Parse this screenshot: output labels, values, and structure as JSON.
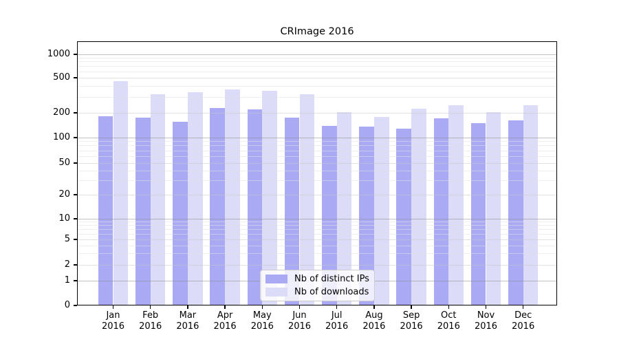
{
  "chart_data": {
    "type": "bar",
    "title": "CRImage 2016",
    "categories": [
      {
        "month": "Jan",
        "year": "2016"
      },
      {
        "month": "Feb",
        "year": "2016"
      },
      {
        "month": "Mar",
        "year": "2016"
      },
      {
        "month": "Apr",
        "year": "2016"
      },
      {
        "month": "May",
        "year": "2016"
      },
      {
        "month": "Jun",
        "year": "2016"
      },
      {
        "month": "Jul",
        "year": "2016"
      },
      {
        "month": "Aug",
        "year": "2016"
      },
      {
        "month": "Sep",
        "year": "2016"
      },
      {
        "month": "Oct",
        "year": "2016"
      },
      {
        "month": "Nov",
        "year": "2016"
      },
      {
        "month": "Dec",
        "year": "2016"
      }
    ],
    "series": [
      {
        "name": "Nb of distinct IPs",
        "color": "#a9a9f4",
        "values": [
          182,
          174,
          155,
          227,
          219,
          174,
          138,
          135,
          128,
          171,
          151,
          163
        ]
      },
      {
        "name": "Nb of downloads",
        "color": "#dcdcf9",
        "values": [
          455,
          326,
          340,
          367,
          353,
          322,
          205,
          177,
          224,
          243,
          203,
          243
        ]
      }
    ],
    "yticks": [
      0,
      1,
      2,
      5,
      10,
      20,
      50,
      100,
      200,
      500,
      1000
    ],
    "yscale": "symlog",
    "ylim": [
      0,
      1400
    ],
    "grid": true,
    "legend_position": "lower center"
  }
}
